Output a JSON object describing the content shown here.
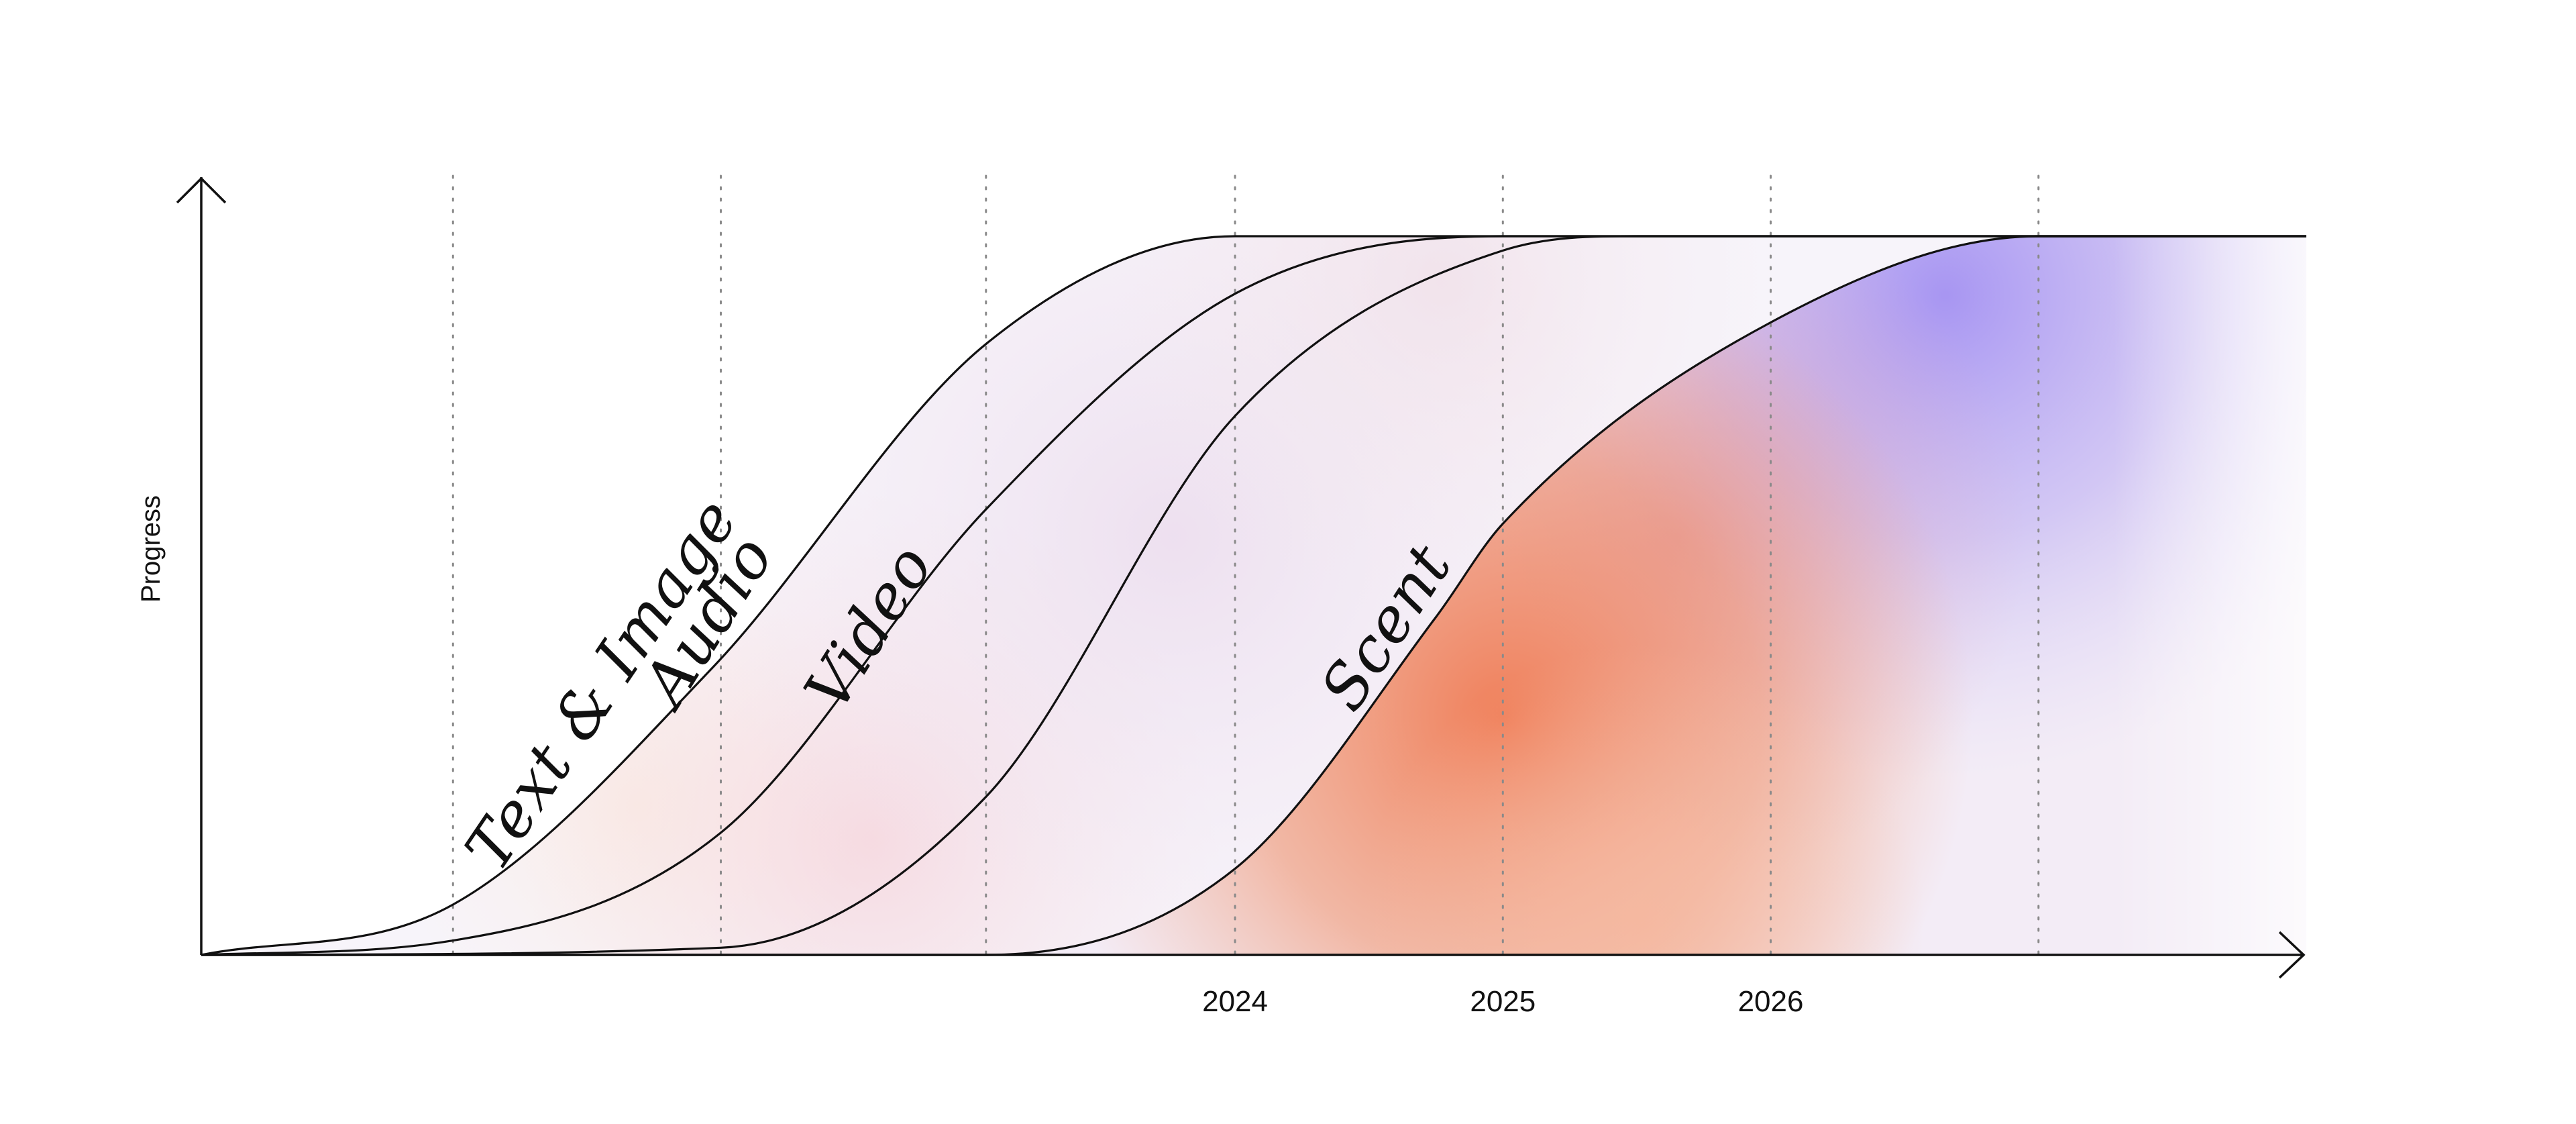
{
  "chart_data": {
    "type": "line",
    "title": "",
    "ylabel": "Progress",
    "xlabel": "",
    "grid": "vertical dotted",
    "legend": "none",
    "x_tick_labels": [
      "2024",
      "2025",
      "2026"
    ],
    "x_tick_values": [
      2024,
      2025,
      2026
    ],
    "gridline_x_values": [
      2021.08,
      2022.08,
      2023.07,
      2024.0,
      2025.0,
      2026.0,
      2027.0
    ],
    "xlim": [
      2020.14,
      2028.0
    ],
    "ylim": [
      0,
      1
    ],
    "series": [
      {
        "name": "Text & Image",
        "x": [
          2020.14,
          2021.08,
          2022.05,
          2023.07,
          2024.0,
          2024.5,
          2028.0
        ],
        "values": [
          0,
          0.07,
          0.4,
          0.85,
          1,
          1,
          1
        ],
        "color": "#111111"
      },
      {
        "name": "Audio",
        "x": [
          2020.14,
          2021.08,
          2022.08,
          2023.07,
          2024.0,
          2025.0,
          2028.0
        ],
        "values": [
          0,
          0.02,
          0.17,
          0.62,
          0.92,
          1,
          1
        ],
        "color": "#111111"
      },
      {
        "name": "Video",
        "x": [
          2020.14,
          2022.08,
          2023.07,
          2024.0,
          2025.0,
          2025.5,
          2028.0
        ],
        "values": [
          0,
          0.01,
          0.22,
          0.75,
          0.98,
          1,
          1
        ],
        "color": "#111111"
      },
      {
        "name": "Scent",
        "x": [
          2020.14,
          2023.07,
          2024.0,
          2024.75,
          2025.0,
          2026.0,
          2027.0,
          2028.0
        ],
        "values": [
          0,
          0,
          0.12,
          0.47,
          0.6,
          0.88,
          1,
          1
        ],
        "color": "#111111"
      }
    ]
  },
  "colors": {
    "axis": "#111111",
    "gridline": "#8a8a8a",
    "scent_fill_orange": "#f0805a",
    "scent_fill_purple": "#a58cf0",
    "band_tint_pink": "#f8e6ea",
    "band_tint_lavender": "#ece8f6"
  }
}
